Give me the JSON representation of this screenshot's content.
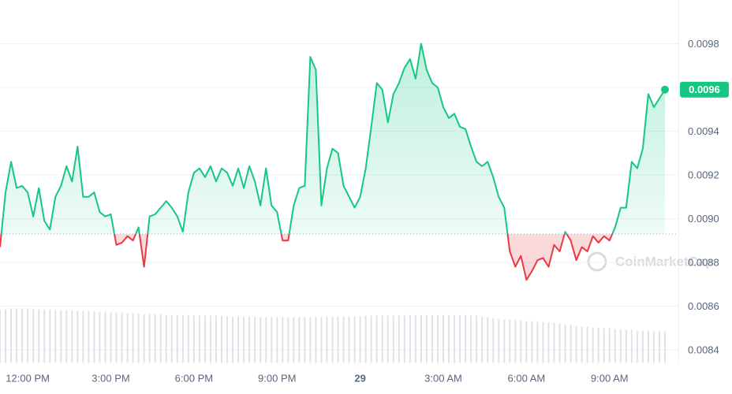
{
  "chart_data": {
    "type": "line",
    "watermark": "CoinMarketCap",
    "xlim": [
      0,
      120
    ],
    "xticks": [
      {
        "value": 5,
        "label": "12:00 PM"
      },
      {
        "value": 20,
        "label": "3:00 PM"
      },
      {
        "value": 35,
        "label": "6:00 PM"
      },
      {
        "value": 50,
        "label": "9:00 PM"
      },
      {
        "value": 65,
        "label": "29"
      },
      {
        "value": 80,
        "label": "3:00 AM"
      },
      {
        "value": 95,
        "label": "6:00 AM"
      },
      {
        "value": 110,
        "label": "9:00 AM"
      }
    ],
    "ylim": [
      0.00834,
      0.01
    ],
    "yticks": [
      0.0084,
      0.0086,
      0.0088,
      {
        "value": 0.009,
        "label": "0.0090"
      },
      0.0092,
      0.0094,
      0.0096,
      0.0098
    ],
    "grid": true,
    "baseline": 0.00893,
    "up_color": "#16c784",
    "down_color": "#ea3943",
    "current_price": {
      "value": 0.00959,
      "label": "0.0096"
    },
    "series": [
      {
        "values": [
          0.00887,
          0.00912,
          0.00926,
          0.00914,
          0.00915,
          0.00912,
          0.00901,
          0.00914,
          0.00899,
          0.00895,
          0.0091,
          0.00915,
          0.00924,
          0.00917,
          0.00933,
          0.0091,
          0.0091,
          0.00912,
          0.00903,
          0.00901,
          0.00902,
          0.00888,
          0.00889,
          0.00892,
          0.0089,
          0.00896,
          0.00878,
          0.00901,
          0.00902,
          0.00905,
          0.00908,
          0.00905,
          0.00901,
          0.00894,
          0.00912,
          0.00921,
          0.00923,
          0.00919,
          0.00924,
          0.00917,
          0.00923,
          0.00921,
          0.00915,
          0.00923,
          0.00914,
          0.00924,
          0.00917,
          0.00906,
          0.00923,
          0.00906,
          0.00903,
          0.0089,
          0.0089,
          0.00906,
          0.00914,
          0.00915,
          0.00974,
          0.00968,
          0.00906,
          0.00923,
          0.00932,
          0.0093,
          0.00915,
          0.0091,
          0.00905,
          0.0091,
          0.00923,
          0.00942,
          0.00962,
          0.00959,
          0.00944,
          0.00957,
          0.00962,
          0.00969,
          0.00973,
          0.00964,
          0.0098,
          0.00968,
          0.00962,
          0.0096,
          0.00951,
          0.00946,
          0.00948,
          0.00942,
          0.00941,
          0.00933,
          0.00926,
          0.00924,
          0.00926,
          0.00919,
          0.0091,
          0.00905,
          0.00885,
          0.00878,
          0.00883,
          0.00872,
          0.00876,
          0.00881,
          0.00882,
          0.00878,
          0.00888,
          0.00885,
          0.00894,
          0.0089,
          0.00881,
          0.00887,
          0.00885,
          0.00892,
          0.00889,
          0.00892,
          0.0089,
          0.00896,
          0.00905,
          0.00905,
          0.00926,
          0.00923,
          0.00932,
          0.00957,
          0.00951,
          0.00955,
          0.00959
        ]
      }
    ],
    "volume": {
      "ylim": [
        0,
        100
      ],
      "color": "#dfe3e8",
      "values": [
        68,
        68,
        69,
        69,
        69,
        69,
        68,
        68,
        68,
        68,
        67,
        67,
        67,
        67,
        66,
        66,
        66,
        65,
        65,
        65,
        64,
        64,
        64,
        63,
        63,
        63,
        62,
        62,
        62,
        62,
        61,
        61,
        61,
        61,
        61,
        60,
        60,
        60,
        60,
        60,
        60,
        59,
        59,
        59,
        59,
        59,
        59,
        58,
        58,
        58,
        58,
        58,
        58,
        58,
        58,
        58,
        58,
        58,
        58,
        59,
        59,
        59,
        59,
        59,
        59,
        59,
        60,
        60,
        60,
        60,
        60,
        60,
        60,
        60,
        61,
        61,
        61,
        61,
        61,
        61,
        61,
        61,
        61,
        61,
        61,
        60,
        60,
        59,
        58,
        57,
        56,
        55,
        55,
        54,
        54,
        53,
        53,
        52,
        52,
        51,
        51,
        50,
        49,
        48,
        47,
        46,
        46,
        45,
        45,
        44,
        44,
        43,
        43,
        42,
        42,
        41,
        41,
        41,
        40,
        40,
        40
      ]
    }
  }
}
